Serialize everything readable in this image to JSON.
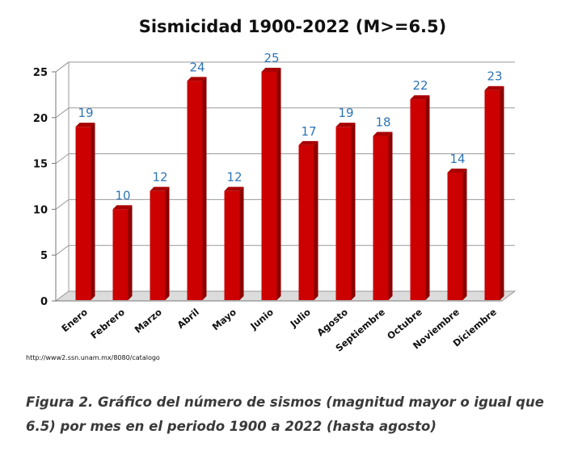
{
  "chart_data": {
    "type": "bar",
    "title": "Sismicidad 1900-2022 (M>=6.5)",
    "categories": [
      "Enero",
      "Febrero",
      "Marzo",
      "Abril",
      "Mayo",
      "Junio",
      "Julio",
      "Agosto",
      "Septiembre",
      "Octubre",
      "Noviembre",
      "Diciembre"
    ],
    "values": [
      19,
      10,
      12,
      24,
      12,
      25,
      17,
      19,
      18,
      22,
      14,
      23
    ],
    "ylim": [
      0,
      25
    ],
    "yticks": [
      0,
      5,
      10,
      15,
      20,
      25
    ],
    "xlabel": "",
    "ylabel": "",
    "grid": true,
    "bar_color": "#cc0000",
    "label_color": "#2e75b6"
  },
  "source_text": "http://www2.ssn.unam.mx/8080/catalogo",
  "caption": "Figura 2. Gráfico del número de sismos (magnitud mayor o igual que 6.5) por mes en el periodo 1900 a 2022 (hasta agosto)"
}
